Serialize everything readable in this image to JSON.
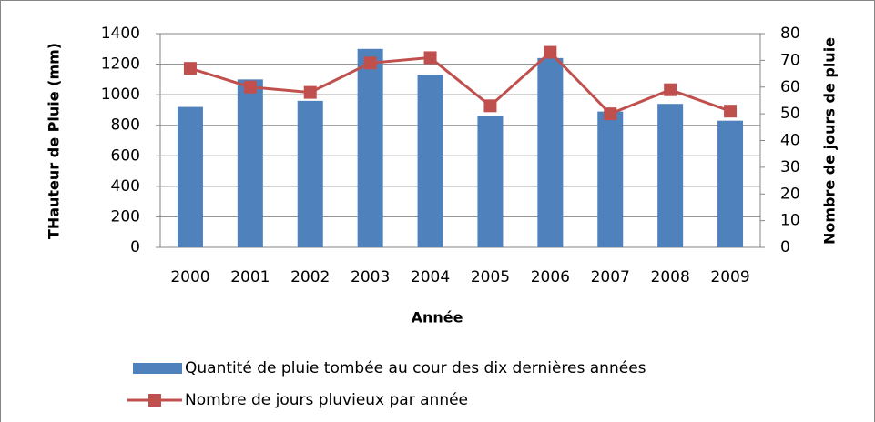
{
  "chart_data": {
    "type": "bar",
    "categories": [
      "2000",
      "2001",
      "2002",
      "2003",
      "2004",
      "2005",
      "2006",
      "2007",
      "2008",
      "2009"
    ],
    "x_label": "Année",
    "y_label": "THauteur de Pluie (mm)",
    "y2_label": "Nombre de jours de pluie",
    "series": [
      {
        "name": "Quantité de pluie tombée au cour des dix dernières années",
        "type": "bar",
        "color": "#4f81bd",
        "values": [
          920,
          1100,
          960,
          1300,
          1130,
          860,
          1240,
          890,
          940,
          830
        ]
      },
      {
        "name": "Nombre de jours pluvieux par année",
        "type": "line",
        "axis": "y2",
        "color": "#c0504d",
        "values": [
          67,
          60,
          58,
          69,
          71,
          53,
          73,
          50,
          59,
          51
        ]
      }
    ],
    "ylim": [
      0,
      1400
    ],
    "yticks": [
      0,
      200,
      400,
      600,
      800,
      1000,
      1200,
      1400
    ],
    "y2lim": [
      0,
      80
    ],
    "y2ticks": [
      0,
      10,
      20,
      30,
      40,
      50,
      60,
      70,
      80
    ],
    "grid": true,
    "legend": "bottom"
  }
}
